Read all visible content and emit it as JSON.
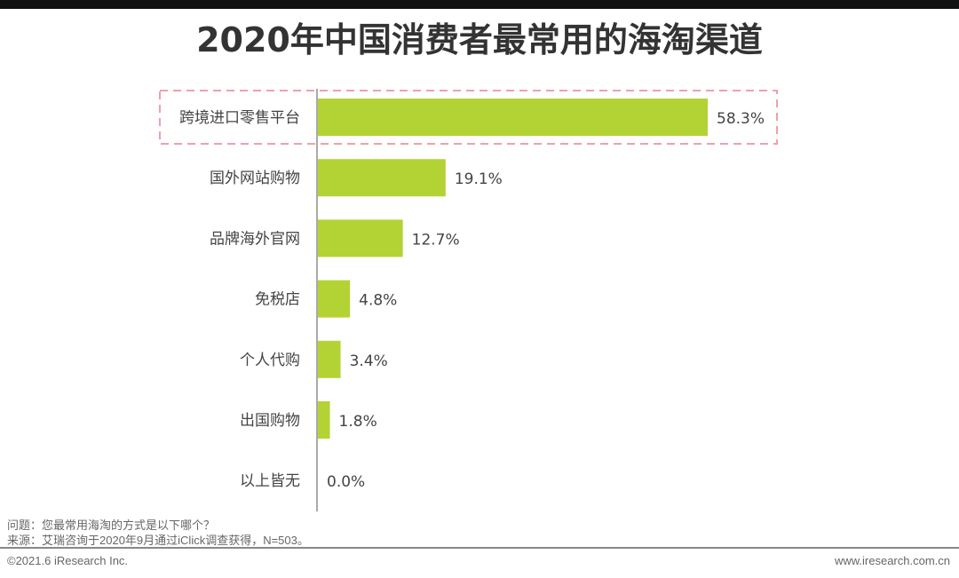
{
  "chart_data": {
    "type": "bar",
    "orientation": "horizontal",
    "title": "2020年中国消费者最常用的海淘渠道",
    "categories": [
      "跨境进口零售平台",
      "国外网站购物",
      "品牌海外官网",
      "免税店",
      "个人代购",
      "出国购物",
      "以上皆无"
    ],
    "values": [
      58.3,
      19.1,
      12.7,
      4.8,
      3.4,
      1.8,
      0.0
    ],
    "labels": [
      "58.3%",
      "19.1%",
      "12.7%",
      "4.8%",
      "3.4%",
      "1.8%",
      "0.0%"
    ],
    "unit": "%",
    "highlighted": "跨境进口零售平台",
    "bar_color": "#b3d334",
    "highlight_color": "#f0a0aa"
  },
  "notes": {
    "question": "问题：您最常用海淘的方式是以下哪个？",
    "source": "来源：艾瑞咨询于2020年9月通过iClick调查获得，N=503。"
  },
  "footer": {
    "copyright": "©2021.6 iResearch Inc.",
    "url": "www.iresearch.com.cn"
  }
}
